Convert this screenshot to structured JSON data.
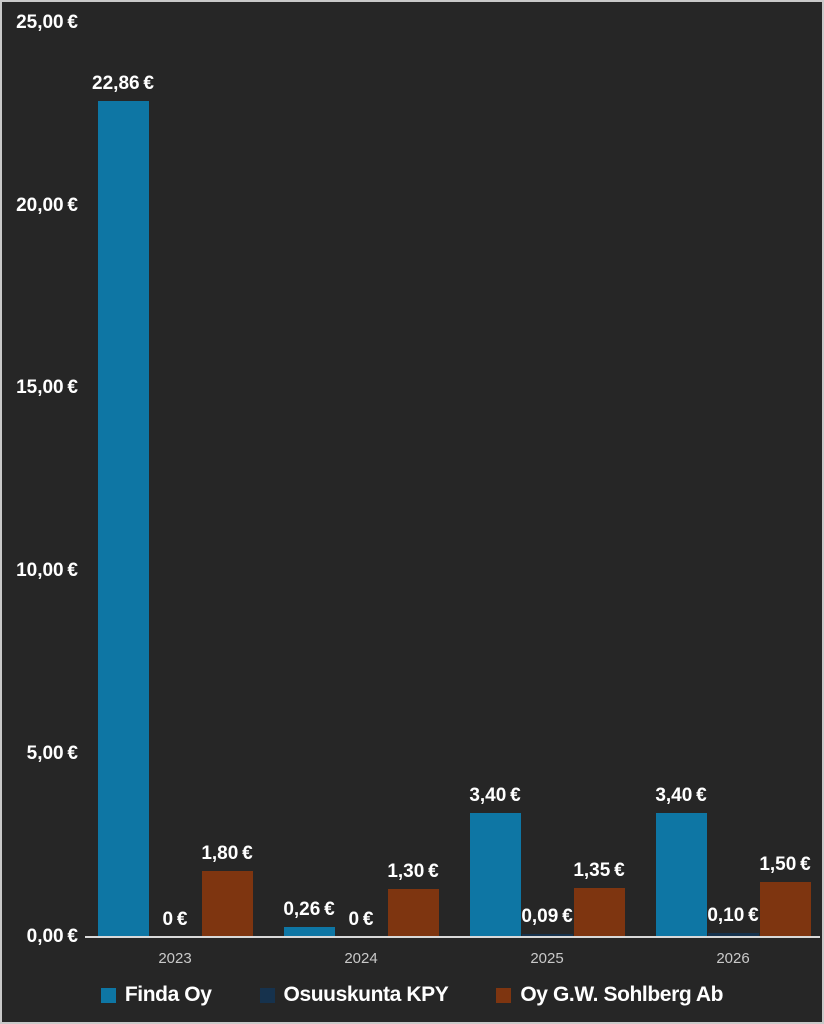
{
  "chart_data": {
    "type": "bar",
    "title": "",
    "xlabel": "",
    "ylabel": "",
    "categories": [
      "2023",
      "2024",
      "2025",
      "2026"
    ],
    "series": [
      {
        "name": "Finda Oy",
        "color": "#0e76a4",
        "values": [
          22.86,
          0.26,
          3.4,
          3.4
        ],
        "labels": [
          "22,86 €",
          "0,26 €",
          "3,40 €",
          "3,40 €"
        ]
      },
      {
        "name": "Osuuskunta KPY",
        "color": "#16324d",
        "values": [
          0,
          0,
          0.09,
          0.1
        ],
        "labels": [
          "0 €",
          "0 €",
          "0,09 €",
          "0,10 €"
        ]
      },
      {
        "name": "Oy G.W. Sohlberg Ab",
        "color": "#7e3510",
        "values": [
          1.8,
          1.3,
          1.35,
          1.5
        ],
        "labels": [
          "1,80 €",
          "1,30 €",
          "1,35 €",
          "1,50 €"
        ]
      }
    ],
    "y_axis": {
      "min": 0,
      "max": 25,
      "grid": false,
      "ticks": [
        {
          "value": 0,
          "label": "0,00 €"
        },
        {
          "value": 5,
          "label": "5,00 €"
        },
        {
          "value": 10,
          "label": "10,00 €"
        },
        {
          "value": 15,
          "label": "15,00 €"
        },
        {
          "value": 20,
          "label": "20,00 €"
        },
        {
          "value": 25,
          "label": "25,00 €"
        }
      ]
    },
    "legend_position": "bottom",
    "colors": {
      "background": "#262626",
      "frame_border": "#c9c9c9",
      "axis_line": "#d9d9d9",
      "value_label_text": "#ffffff",
      "category_label_text": "#c9c9c9"
    }
  }
}
